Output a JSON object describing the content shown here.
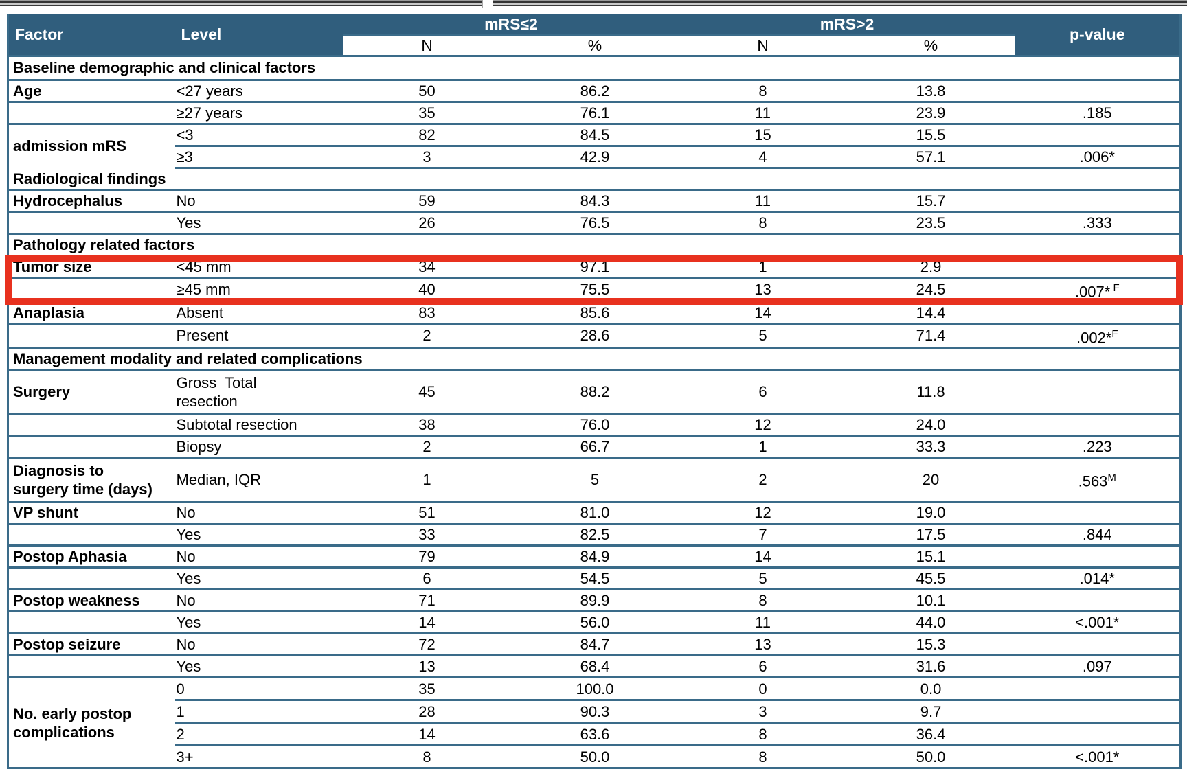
{
  "window": {
    "top_rule": "window-edge",
    "drag_handle": "resize-handle"
  },
  "colors": {
    "header_bg": "#305E7D",
    "line": "#3A6B89",
    "highlight": "#E8311F",
    "header_text": "#FFFFFF",
    "body_text": "#000000"
  },
  "table": {
    "header": {
      "factor": "Factor",
      "level": "Level",
      "group1": "mRS≤2",
      "group2": "mRS>2",
      "pvalue": "p-value",
      "sub_n": "N",
      "sub_pct": "%"
    },
    "rows": [
      {
        "type": "section",
        "label": "Baseline demographic and clinical factors"
      },
      {
        "type": "data",
        "factor": "Age",
        "level": "<27 years",
        "n1": "50",
        "pct1": "86.2",
        "n2": "8",
        "pct2": "13.8",
        "p": ""
      },
      {
        "type": "data",
        "factor": "",
        "level": "≥27 years",
        "n1": "35",
        "pct1": "76.1",
        "n2": "11",
        "pct2": "23.9",
        "p": ".185"
      },
      {
        "type": "data",
        "factor": "admission mRS",
        "factor_rowspan": 2,
        "factor_no_bottom": true,
        "level": "<3",
        "n1": "82",
        "pct1": "84.5",
        "n2": "15",
        "pct2": "15.5",
        "p": ""
      },
      {
        "type": "data",
        "factor_skip": true,
        "level": "≥3",
        "n1": "3",
        "pct1": "42.9",
        "n2": "4",
        "pct2": "57.1",
        "p": ".006*"
      },
      {
        "type": "section",
        "label": "Radiological findings"
      },
      {
        "type": "data",
        "factor": "Hydrocephalus",
        "level": "No",
        "n1": "59",
        "pct1": "84.3",
        "n2": "11",
        "pct2": "15.7",
        "p": ""
      },
      {
        "type": "data",
        "factor": "",
        "level": "Yes",
        "n1": "26",
        "pct1": "76.5",
        "n2": "8",
        "pct2": "23.5",
        "p": ".333"
      },
      {
        "type": "section",
        "label": "Pathology related factors"
      },
      {
        "type": "data",
        "factor": "Tumor size",
        "level": "<45 mm",
        "n1": "34",
        "pct1": "97.1",
        "n2": "1",
        "pct2": "2.9",
        "p": ""
      },
      {
        "type": "data",
        "factor": "",
        "level": "≥45 mm",
        "n1": "40",
        "pct1": "75.5",
        "n2": "13",
        "pct2": "24.5",
        "p": ".007*",
        "p_sup": " F"
      },
      {
        "type": "data",
        "factor": "Anaplasia",
        "level": "Absent",
        "n1": "83",
        "pct1": "85.6",
        "n2": "14",
        "pct2": "14.4",
        "p": ""
      },
      {
        "type": "data",
        "factor": "",
        "level": "Present",
        "n1": "2",
        "pct1": "28.6",
        "n2": "5",
        "pct2": "71.4",
        "p": ".002*",
        "p_sup": "F"
      },
      {
        "type": "section",
        "label": "Management modality and related complications"
      },
      {
        "type": "data",
        "factor": "Surgery",
        "level": "Gross  Total\nresection",
        "n1": "45",
        "pct1": "88.2",
        "n2": "6",
        "pct2": "11.8",
        "p": "",
        "tall": true
      },
      {
        "type": "data",
        "factor": "",
        "level": "Subtotal resection",
        "n1": "38",
        "pct1": "76.0",
        "n2": "12",
        "pct2": "24.0",
        "p": ""
      },
      {
        "type": "data",
        "factor": "",
        "level": "Biopsy",
        "n1": "2",
        "pct1": "66.7",
        "n2": "1",
        "pct2": "33.3",
        "p": ".223"
      },
      {
        "type": "data",
        "factor": "Diagnosis to\nsurgery time (days)",
        "level": "Median, IQR",
        "n1": "1",
        "pct1": "5",
        "n2": "2",
        "pct2": "20",
        "p": ".563",
        "p_sup": "M",
        "tall": true
      },
      {
        "type": "data",
        "factor": "VP shunt",
        "level": "No",
        "n1": "51",
        "pct1": "81.0",
        "n2": "12",
        "pct2": "19.0",
        "p": ""
      },
      {
        "type": "data",
        "factor": "",
        "level": "Yes",
        "n1": "33",
        "pct1": "82.5",
        "n2": "7",
        "pct2": "17.5",
        "p": ".844"
      },
      {
        "type": "data",
        "factor": "Postop Aphasia",
        "level": "No",
        "n1": "79",
        "pct1": "84.9",
        "n2": "14",
        "pct2": "15.1",
        "p": ""
      },
      {
        "type": "data",
        "factor": "",
        "level": "Yes",
        "n1": "6",
        "pct1": "54.5",
        "n2": "5",
        "pct2": "45.5",
        "p": ".014*"
      },
      {
        "type": "data",
        "factor": "Postop weakness",
        "level": "No",
        "n1": "71",
        "pct1": "89.9",
        "n2": "8",
        "pct2": "10.1",
        "p": ""
      },
      {
        "type": "data",
        "factor": "",
        "level": "Yes",
        "n1": "14",
        "pct1": "56.0",
        "n2": "11",
        "pct2": "44.0",
        "p": "<.001*"
      },
      {
        "type": "data",
        "factor": "Postop seizure",
        "level": "No",
        "n1": "72",
        "pct1": "84.7",
        "n2": "13",
        "pct2": "15.3",
        "p": ""
      },
      {
        "type": "data",
        "factor": "",
        "level": "Yes",
        "n1": "13",
        "pct1": "68.4",
        "n2": "6",
        "pct2": "31.6",
        "p": ".097"
      },
      {
        "type": "data",
        "factor": "No. early postop\ncomplications",
        "factor_rowspan": 4,
        "level": "0",
        "n1": "35",
        "pct1": "100.0",
        "n2": "0",
        "pct2": "0.0",
        "p": "",
        "tail": true
      },
      {
        "type": "data",
        "factor_skip": true,
        "level": "1",
        "n1": "28",
        "pct1": "90.3",
        "n2": "3",
        "pct2": "9.7",
        "p": "",
        "tail": true
      },
      {
        "type": "data",
        "factor_skip": true,
        "level": "2",
        "n1": "14",
        "pct1": "63.6",
        "n2": "8",
        "pct2": "36.4",
        "p": "",
        "tail": true
      },
      {
        "type": "data",
        "factor_skip": true,
        "level": "3+",
        "n1": "8",
        "pct1": "50.0",
        "n2": "8",
        "pct2": "50.0",
        "p": "<.001*",
        "tail": true
      }
    ]
  },
  "highlight": {
    "target_rows": [
      "<45 mm",
      "≥45 mm"
    ]
  }
}
